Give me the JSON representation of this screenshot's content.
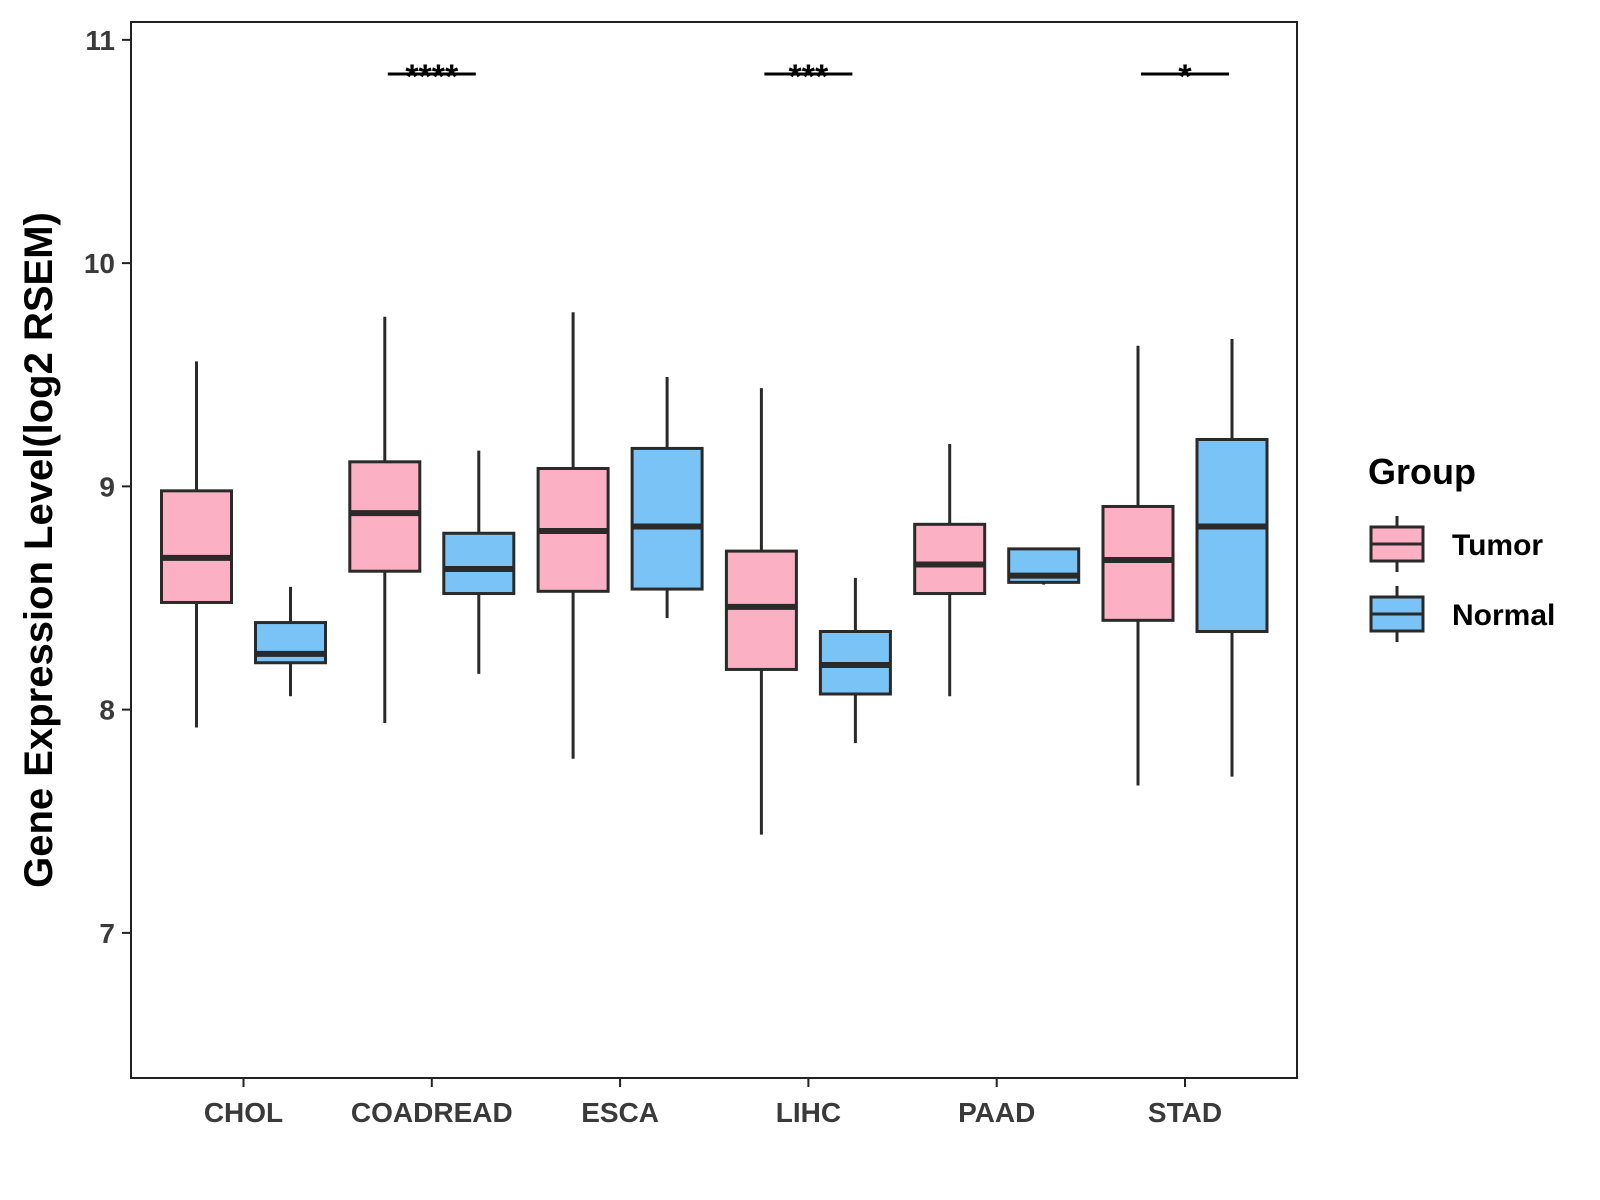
{
  "chart_data": {
    "type": "box",
    "ylabel": "Gene Expression Level(log2 RSEM)",
    "xlabel": "",
    "ylim": [
      6.35,
      11.08
    ],
    "yticks": [
      7,
      8,
      9,
      10,
      11
    ],
    "categories": [
      "CHOL",
      "COADREAD",
      "ESCA",
      "LIHC",
      "PAAD",
      "STAD"
    ],
    "legend": {
      "title": "Group",
      "position": "right",
      "entries": [
        {
          "name": "Tumor",
          "color": "#FBB1C3"
        },
        {
          "name": "Normal",
          "color": "#79C3F7"
        }
      ]
    },
    "series": [
      {
        "name": "Tumor",
        "color": "#FBB1C3",
        "boxes": [
          {
            "category": "CHOL",
            "whisker_low": 7.92,
            "q1": 8.48,
            "median": 8.68,
            "q3": 8.98,
            "whisker_high": 9.56
          },
          {
            "category": "COADREAD",
            "whisker_low": 7.94,
            "q1": 8.62,
            "median": 8.88,
            "q3": 9.11,
            "whisker_high": 9.76
          },
          {
            "category": "ESCA",
            "whisker_low": 7.78,
            "q1": 8.53,
            "median": 8.8,
            "q3": 9.08,
            "whisker_high": 9.78
          },
          {
            "category": "LIHC",
            "whisker_low": 7.44,
            "q1": 8.18,
            "median": 8.46,
            "q3": 8.71,
            "whisker_high": 9.44
          },
          {
            "category": "PAAD",
            "whisker_low": 8.06,
            "q1": 8.52,
            "median": 8.65,
            "q3": 8.83,
            "whisker_high": 9.19
          },
          {
            "category": "STAD",
            "whisker_low": 7.66,
            "q1": 8.4,
            "median": 8.67,
            "q3": 8.91,
            "whisker_high": 9.63
          }
        ]
      },
      {
        "name": "Normal",
        "color": "#79C3F7",
        "boxes": [
          {
            "category": "CHOL",
            "whisker_low": 8.06,
            "q1": 8.21,
            "median": 8.25,
            "q3": 8.39,
            "whisker_high": 8.55
          },
          {
            "category": "COADREAD",
            "whisker_low": 8.16,
            "q1": 8.52,
            "median": 8.63,
            "q3": 8.79,
            "whisker_high": 9.16
          },
          {
            "category": "ESCA",
            "whisker_low": 8.41,
            "q1": 8.54,
            "median": 8.82,
            "q3": 9.17,
            "whisker_high": 9.49
          },
          {
            "category": "LIHC",
            "whisker_low": 7.85,
            "q1": 8.07,
            "median": 8.2,
            "q3": 8.35,
            "whisker_high": 8.59
          },
          {
            "category": "PAAD",
            "whisker_low": 8.56,
            "q1": 8.57,
            "median": 8.6,
            "q3": 8.72,
            "whisker_high": 8.72
          },
          {
            "category": "STAD",
            "whisker_low": 7.7,
            "q1": 8.35,
            "median": 8.82,
            "q3": 9.21,
            "whisker_high": 9.66
          }
        ]
      }
    ],
    "annotations": [
      {
        "category": "COADREAD",
        "label": "****"
      },
      {
        "category": "LIHC",
        "label": "***"
      },
      {
        "category": "STAD",
        "label": "*"
      }
    ]
  }
}
